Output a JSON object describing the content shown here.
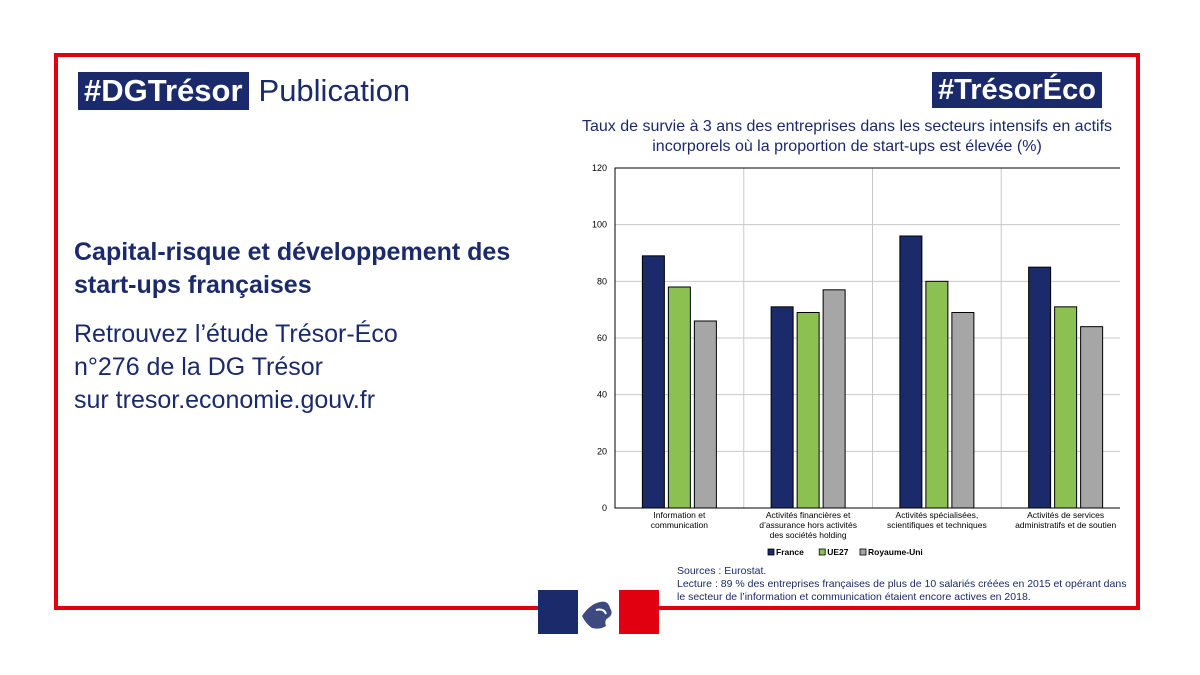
{
  "header": {
    "tag_left": "#DGTrésor",
    "tag_left_suffix": "Publication",
    "tag_right": "#TrésorÉco"
  },
  "main": {
    "headline": "Capital-risque et développement des start-ups françaises",
    "subline": "Retrouvez l’étude Trésor-Éco\nn°276 de la DG Trésor\nsur tresor.economie.gouv.fr"
  },
  "colors": {
    "frame": "#e1000f",
    "brand_blue": "#1b2a6b",
    "france": "#1b2a6b",
    "ue27": "#8cc152",
    "royaume_uni": "#a6a6a6"
  },
  "chart_data": {
    "type": "bar",
    "title": "Taux de survie à 3 ans des entreprises dans les secteurs intensifs en actifs incorporels où la proportion de start-ups est élevée (%)",
    "categories": [
      [
        "Information et",
        "communication"
      ],
      [
        "Activités financières et",
        "d’assurance hors activités",
        "des sociétés holding"
      ],
      [
        "Activités spécialisées,",
        "scientifiques et techniques"
      ],
      [
        "Activités de services",
        "administratifs et de soutien"
      ]
    ],
    "series": [
      {
        "name": "France",
        "values": [
          89,
          71,
          96,
          85
        ]
      },
      {
        "name": "UE27",
        "values": [
          78,
          69,
          80,
          71
        ]
      },
      {
        "name": "Royaume-Uni",
        "values": [
          66,
          77,
          69,
          64
        ]
      }
    ],
    "ylim": [
      0,
      120
    ],
    "yticks": [
      "0",
      "20",
      "40",
      "60",
      "80",
      "100",
      "120"
    ],
    "grid": true,
    "legend": "bottom-center"
  },
  "notes": {
    "sources": "Sources : Eurostat.",
    "lecture": "Lecture : 89 % des entreprises françaises de plus de 10 salariés créées en 2015 et opérant dans le secteur de l’information et communication étaient encore actives en 2018."
  },
  "logo": {
    "icon": "marianne-logo-icon"
  }
}
